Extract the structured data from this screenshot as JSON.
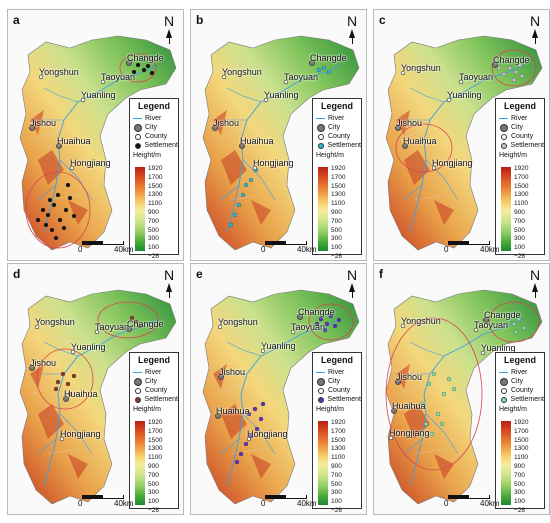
{
  "north_label": "N",
  "legend": {
    "title": "Legend",
    "items": [
      "River",
      "City",
      "County",
      "Settlement"
    ],
    "height_title": "Height/m",
    "ramp": [
      "1920",
      "1700",
      "1500",
      "1300",
      "1100",
      "900",
      "700",
      "500",
      "300",
      "100",
      "−26"
    ]
  },
  "scale": {
    "zero": "0",
    "distance": "40km"
  },
  "colors": {
    "river": "#3aa0e6",
    "ellipse": "#d9444f",
    "high": "#b81f16",
    "low": "#1c8a33"
  },
  "places": {
    "Changde": "Changde",
    "Taoyuan": "Taoyuan",
    "Yongshun": "Yongshun",
    "Yuanling": "Yuanling",
    "Jishou": "Jishou",
    "Huaihua": "Huaihua",
    "Hongjiang": "Hongjiang"
  },
  "panels": [
    {
      "label": "a",
      "settlement_color": "#111111"
    },
    {
      "label": "b",
      "settlement_color": "#2ab8d6"
    },
    {
      "label": "c",
      "settlement_color": "#c4c4c4"
    },
    {
      "label": "d",
      "settlement_color": "#8a3a22"
    },
    {
      "label": "e",
      "settlement_color": "#5a2fc4"
    },
    {
      "label": "f",
      "settlement_color": "#7fe0a8"
    }
  ]
}
